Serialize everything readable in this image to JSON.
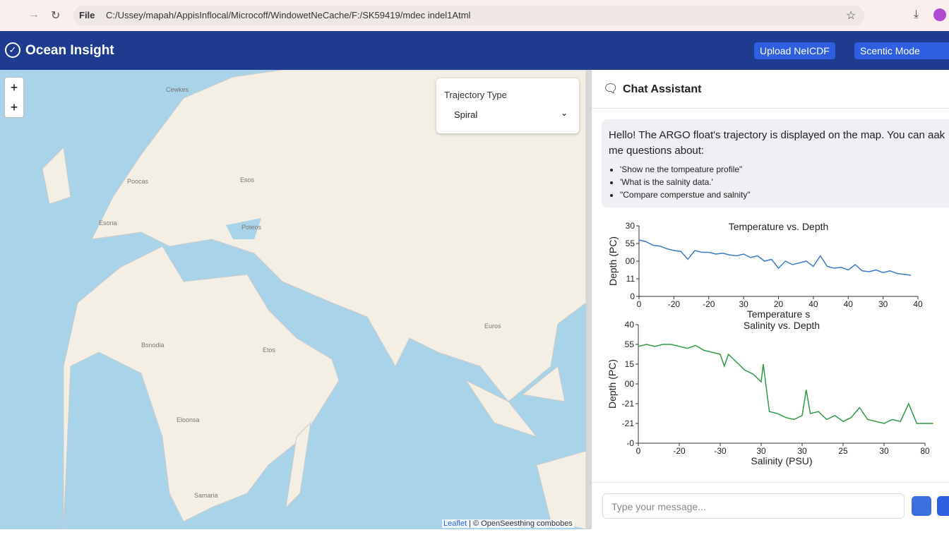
{
  "browser": {
    "file_label": "File",
    "url": "C:/Ussey/mapah/AppisInflocal/Microcoff/WindowetNeCache/F:/SK59419/mdec indel1Atml"
  },
  "header": {
    "title": "Ocean Insight",
    "upload_button": "Upload NeICDF",
    "mode_button": "Scentic Mode"
  },
  "map": {
    "zoom_in": "+",
    "zoom_out": "+",
    "labels": [
      "Cewkes",
      "Poocas",
      "Esos",
      "Esona",
      "Poteos",
      "Bsnodia",
      "Etos",
      "Eloonsa",
      "Samaria",
      "Euros"
    ],
    "attribution_leaflet": "Leaflet",
    "attribution_osm": "| © OpenSeesthing combobes",
    "trajectory": {
      "label": "Trajectory Type",
      "selected": "Spiral"
    }
  },
  "chat": {
    "title": "Chat Assistant",
    "message": "Hello! The ARGO float's trajectory is displayed on the map. You can aak me questions about:",
    "bullets": [
      "'Show ne the tompeature profile\"",
      "'What is the salnity data.'",
      "\"Compare comperstue and salnity\""
    ],
    "input_placeholder": "Type your message...",
    "charts": [
      {
        "type": "line",
        "title": "Temperature vs. Depth",
        "x_label": "Temperature s",
        "y_label": "Depth (PC)",
        "xlim": [
          0,
          8
        ],
        "xticks": [
          {
            "value": 0,
            "label": "0"
          },
          {
            "value": 1,
            "label": "-20"
          },
          {
            "value": 2,
            "label": "-20"
          },
          {
            "value": 3,
            "label": "30"
          },
          {
            "value": 4,
            "label": "20"
          },
          {
            "value": 5,
            "label": "40"
          },
          {
            "value": 6,
            "label": "40"
          },
          {
            "value": 7,
            "label": "30"
          },
          {
            "value": 8,
            "label": "40"
          }
        ],
        "ylim": [
          0,
          4
        ],
        "yticks": [
          {
            "value": 0,
            "label": "0"
          },
          {
            "value": 1,
            "label": "11"
          },
          {
            "value": 2,
            "label": "00"
          },
          {
            "value": 3,
            "label": "55"
          },
          {
            "value": 4,
            "label": "30"
          }
        ],
        "series": [
          {
            "color": "#3a7bc8",
            "x": [
              0,
              0.2,
              0.4,
              0.6,
              0.8,
              1,
              1.2,
              1.4,
              1.6,
              1.8,
              2,
              2.2,
              2.4,
              2.6,
              2.8,
              3,
              3.2,
              3.4,
              3.6,
              3.8,
              4,
              4.2,
              4.4,
              4.6,
              4.8,
              5,
              5.2,
              5.4,
              5.6,
              5.8,
              6,
              6.2,
              6.4,
              6.6,
              6.8,
              7,
              7.2,
              7.4,
              7.6,
              7.8
            ],
            "values": [
              3.2,
              3.1,
              2.9,
              2.85,
              2.7,
              2.6,
              2.55,
              2.1,
              2.6,
              2.5,
              2.5,
              2.4,
              2.45,
              2.35,
              2.3,
              2.4,
              2.2,
              2.3,
              2.0,
              2.1,
              1.6,
              2.0,
              1.8,
              1.9,
              2.0,
              1.7,
              2.3,
              1.7,
              1.6,
              1.65,
              1.5,
              1.8,
              1.45,
              1.4,
              1.5,
              1.35,
              1.45,
              1.3,
              1.25,
              1.2
            ]
          }
        ]
      },
      {
        "type": "line",
        "title": "Salinity vs. Depth",
        "x_label": "Salinity (PSU)",
        "y_label": "Depth (PC)",
        "xlim": [
          0,
          7
        ],
        "xticks": [
          {
            "value": 0,
            "label": "0"
          },
          {
            "value": 1,
            "label": "-20"
          },
          {
            "value": 2,
            "label": "-30"
          },
          {
            "value": 3,
            "label": "30"
          },
          {
            "value": 4,
            "label": "30"
          },
          {
            "value": 5,
            "label": "25"
          },
          {
            "value": 6,
            "label": "30"
          },
          {
            "value": 7,
            "label": "80"
          }
        ],
        "ylim": [
          0,
          6
        ],
        "yticks": [
          {
            "value": 0,
            "label": "-0"
          },
          {
            "value": 1,
            "label": "-21"
          },
          {
            "value": 2,
            "label": "-21"
          },
          {
            "value": 3,
            "label": "00"
          },
          {
            "value": 4,
            "label": "15"
          },
          {
            "value": 5,
            "label": "55"
          },
          {
            "value": 6,
            "label": "40"
          }
        ],
        "series": [
          {
            "color": "#2e9a47",
            "x": [
              0,
              0.2,
              0.4,
              0.6,
              0.8,
              1,
              1.2,
              1.4,
              1.6,
              1.8,
              2,
              2.1,
              2.2,
              2.4,
              2.6,
              2.8,
              3,
              3.05,
              3.2,
              3.4,
              3.6,
              3.8,
              4,
              4.1,
              4.2,
              4.4,
              4.6,
              4.8,
              5,
              5.2,
              5.4,
              5.6,
              5.8,
              6,
              6.2,
              6.4,
              6.6,
              6.8,
              7,
              7.2
            ],
            "values": [
              4.9,
              5.0,
              4.9,
              5.0,
              5.0,
              4.9,
              4.8,
              4.95,
              4.7,
              4.6,
              4.5,
              3.9,
              4.5,
              4.1,
              3.7,
              3.5,
              3.1,
              4.0,
              1.6,
              1.5,
              1.3,
              1.2,
              1.4,
              2.7,
              1.5,
              1.6,
              1.2,
              1.4,
              1.1,
              1.3,
              1.8,
              1.2,
              1.1,
              1.0,
              1.2,
              1.1,
              2.0,
              1.0,
              1.0,
              1.0
            ]
          }
        ]
      }
    ]
  }
}
